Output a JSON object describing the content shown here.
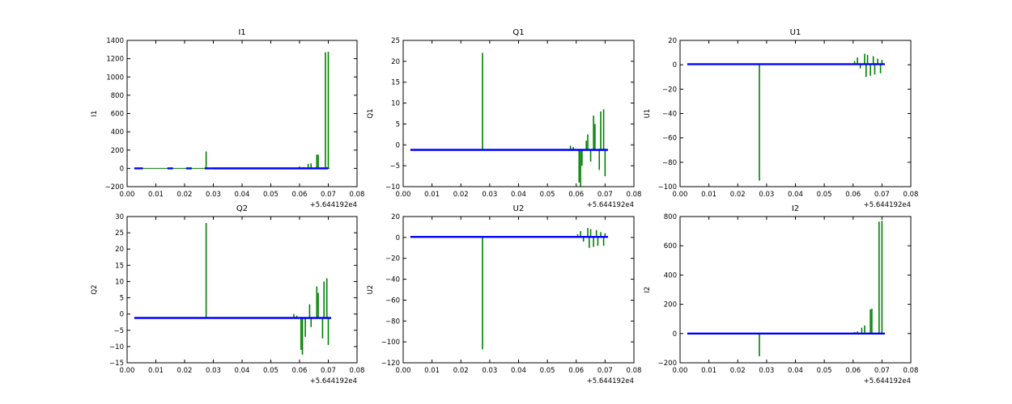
{
  "colors": {
    "blue": "#0000ff",
    "green": "#008000",
    "frame": "#000000",
    "background": "#ffffff"
  },
  "chart_data": [
    {
      "type": "line",
      "title": "I1",
      "ylabel": "I1",
      "xlabel": "",
      "offset_label": "+5.644192e4",
      "xlim": [
        0.0,
        0.08
      ],
      "ylim": [
        -200,
        1400
      ],
      "xticks": [
        "0.00",
        "0.01",
        "0.02",
        "0.03",
        "0.04",
        "0.05",
        "0.06",
        "0.07",
        "0.08"
      ],
      "yticks": [
        "1400",
        "1200",
        "1000",
        "800",
        "600",
        "400",
        "200",
        "0",
        "−200"
      ],
      "grid": false,
      "series": [
        {
          "color": "green",
          "style": "spikes",
          "baseline": 0,
          "spikes": [
            [
              0.0275,
              185
            ],
            [
              0.06,
              20
            ],
            [
              0.0615,
              15
            ],
            [
              0.063,
              50
            ],
            [
              0.064,
              55
            ],
            [
              0.066,
              150
            ],
            [
              0.0665,
              150
            ],
            [
              0.069,
              1270
            ],
            [
              0.07,
              1275
            ]
          ]
        },
        {
          "color": "blue",
          "style": "segments",
          "level": 0,
          "segments": [
            [
              0.0025,
              0.0055
            ],
            [
              0.014,
              0.016
            ],
            [
              0.0205,
              0.0225
            ],
            [
              0.027,
              0.03
            ],
            [
              0.03,
              0.07
            ]
          ]
        }
      ]
    },
    {
      "type": "line",
      "title": "Q1",
      "ylabel": "Q1",
      "xlabel": "",
      "offset_label": "+5.644192e4",
      "xlim": [
        0.0,
        0.08
      ],
      "ylim": [
        -10,
        25
      ],
      "xticks": [
        "0.00",
        "0.01",
        "0.02",
        "0.03",
        "0.04",
        "0.05",
        "0.06",
        "0.07",
        "0.08"
      ],
      "yticks": [
        "25",
        "20",
        "15",
        "10",
        "5",
        "0",
        "−5",
        "−10"
      ],
      "grid": false,
      "series": [
        {
          "color": "green",
          "style": "spikes",
          "baseline": -1.2,
          "spikes": [
            [
              0.0275,
              22
            ],
            [
              0.058,
              -0.2
            ],
            [
              0.059,
              -0.5
            ],
            [
              0.061,
              -9
            ],
            [
              0.0615,
              -10
            ],
            [
              0.062,
              -5
            ],
            [
              0.0635,
              1
            ],
            [
              0.064,
              2.5
            ],
            [
              0.065,
              -4
            ],
            [
              0.066,
              7
            ],
            [
              0.0665,
              5
            ],
            [
              0.068,
              -6
            ],
            [
              0.0685,
              8
            ],
            [
              0.0695,
              8.5
            ],
            [
              0.07,
              -7.5
            ]
          ]
        },
        {
          "color": "blue",
          "style": "segments",
          "level": -1.2,
          "segments": [
            [
              0.0025,
              0.071
            ]
          ]
        }
      ]
    },
    {
      "type": "line",
      "title": "U1",
      "ylabel": "U1",
      "xlabel": "",
      "offset_label": "+5.644192e4",
      "xlim": [
        0.0,
        0.08
      ],
      "ylim": [
        -100,
        20
      ],
      "xticks": [
        "0.00",
        "0.01",
        "0.02",
        "0.03",
        "0.04",
        "0.05",
        "0.06",
        "0.07",
        "0.08"
      ],
      "yticks": [
        "20",
        "0",
        "−20",
        "−40",
        "−60",
        "−80",
        "−100"
      ],
      "grid": false,
      "series": [
        {
          "color": "green",
          "style": "spikes",
          "baseline": 0.5,
          "spikes": [
            [
              0.0275,
              -95
            ],
            [
              0.0605,
              3
            ],
            [
              0.0615,
              6
            ],
            [
              0.0625,
              -3
            ],
            [
              0.064,
              9
            ],
            [
              0.0645,
              -10
            ],
            [
              0.065,
              8
            ],
            [
              0.066,
              -9
            ],
            [
              0.067,
              7
            ],
            [
              0.0675,
              -8
            ],
            [
              0.0685,
              5
            ],
            [
              0.0695,
              -7
            ],
            [
              0.07,
              4
            ]
          ]
        },
        {
          "color": "blue",
          "style": "segments",
          "level": 0.5,
          "segments": [
            [
              0.0025,
              0.071
            ]
          ]
        }
      ]
    },
    {
      "type": "line",
      "title": "Q2",
      "ylabel": "Q2",
      "xlabel": "",
      "offset_label": "+5.644192e4",
      "xlim": [
        0.0,
        0.08
      ],
      "ylim": [
        -15,
        30
      ],
      "xticks": [
        "0.00",
        "0.01",
        "0.02",
        "0.03",
        "0.04",
        "0.05",
        "0.06",
        "0.07",
        "0.08"
      ],
      "yticks": [
        "30",
        "25",
        "20",
        "15",
        "10",
        "5",
        "0",
        "−5",
        "−10",
        "−15"
      ],
      "grid": false,
      "series": [
        {
          "color": "green",
          "style": "spikes",
          "baseline": -1.2,
          "spikes": [
            [
              0.0275,
              28
            ],
            [
              0.058,
              0
            ],
            [
              0.059,
              -0.5
            ],
            [
              0.0605,
              -11
            ],
            [
              0.061,
              -12.5
            ],
            [
              0.062,
              -7
            ],
            [
              0.0635,
              3
            ],
            [
              0.064,
              -4
            ],
            [
              0.066,
              8.5
            ],
            [
              0.0665,
              6.5
            ],
            [
              0.068,
              -7.5
            ],
            [
              0.0685,
              10
            ],
            [
              0.0695,
              11
            ],
            [
              0.07,
              -9.5
            ]
          ]
        },
        {
          "color": "blue",
          "style": "segments",
          "level": -1.2,
          "segments": [
            [
              0.0025,
              0.071
            ]
          ]
        }
      ]
    },
    {
      "type": "line",
      "title": "U2",
      "ylabel": "U2",
      "xlabel": "",
      "offset_label": "+5.644192e4",
      "xlim": [
        0.0,
        0.08
      ],
      "ylim": [
        -120,
        20
      ],
      "xticks": [
        "0.00",
        "0.01",
        "0.02",
        "0.03",
        "0.04",
        "0.05",
        "0.06",
        "0.07",
        "0.08"
      ],
      "yticks": [
        "20",
        "0",
        "−20",
        "−40",
        "−60",
        "−80",
        "−100",
        "−120"
      ],
      "grid": false,
      "series": [
        {
          "color": "green",
          "style": "spikes",
          "baseline": 0.5,
          "spikes": [
            [
              0.0275,
              -107
            ],
            [
              0.0605,
              3
            ],
            [
              0.0615,
              6
            ],
            [
              0.0625,
              -4
            ],
            [
              0.064,
              9
            ],
            [
              0.0645,
              -10
            ],
            [
              0.065,
              8
            ],
            [
              0.066,
              -9
            ],
            [
              0.067,
              7
            ],
            [
              0.0675,
              -8
            ],
            [
              0.0685,
              5
            ],
            [
              0.0695,
              -8
            ],
            [
              0.07,
              4
            ]
          ]
        },
        {
          "color": "blue",
          "style": "segments",
          "level": 0.5,
          "segments": [
            [
              0.0025,
              0.071
            ]
          ]
        }
      ]
    },
    {
      "type": "line",
      "title": "I2",
      "ylabel": "I2",
      "xlabel": "",
      "offset_label": "+5.644192e4",
      "xlim": [
        0.0,
        0.08
      ],
      "ylim": [
        -200,
        800
      ],
      "xticks": [
        "0.00",
        "0.01",
        "0.02",
        "0.03",
        "0.04",
        "0.05",
        "0.06",
        "0.07",
        "0.08"
      ],
      "yticks": [
        "800",
        "600",
        "400",
        "200",
        "0",
        "−200"
      ],
      "grid": false,
      "series": [
        {
          "color": "green",
          "style": "spikes",
          "baseline": 0,
          "spikes": [
            [
              0.0275,
              -155
            ],
            [
              0.0605,
              10
            ],
            [
              0.0615,
              15
            ],
            [
              0.063,
              40
            ],
            [
              0.064,
              55
            ],
            [
              0.066,
              165
            ],
            [
              0.0665,
              170
            ],
            [
              0.069,
              765
            ],
            [
              0.07,
              770
            ]
          ]
        },
        {
          "color": "blue",
          "style": "segments",
          "level": 0,
          "segments": [
            [
              0.0025,
              0.071
            ]
          ]
        }
      ]
    }
  ]
}
